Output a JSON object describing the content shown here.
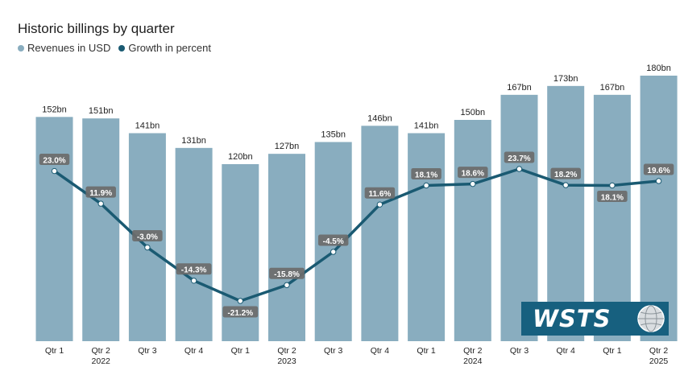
{
  "title": "Historic billings by quarter",
  "legend": [
    {
      "label": "Revenues in USD",
      "color": "#89adbf"
    },
    {
      "label": "Growth in percent",
      "color": "#1a5a72"
    }
  ],
  "logo": {
    "text": "WSTS"
  },
  "colors": {
    "bar": "#89adbf",
    "line": "#1a5a72",
    "label_bg": "#6b6b6b"
  },
  "chart_data": {
    "type": "bar",
    "title": "Historic billings by quarter",
    "categories": [
      "Qtr 1",
      "Qtr 2",
      "Qtr 3",
      "Qtr 4",
      "Qtr 1",
      "Qtr 2",
      "Qtr 3",
      "Qtr 4",
      "Qtr 1",
      "Qtr 2",
      "Qtr 3",
      "Qtr 4",
      "Qtr 1",
      "Qtr 2"
    ],
    "years": [
      {
        "label": "2022",
        "under_index": 1
      },
      {
        "label": "2023",
        "under_index": 5
      },
      {
        "label": "2024",
        "under_index": 9
      },
      {
        "label": "2025",
        "under_index": 13
      }
    ],
    "series": [
      {
        "name": "Revenues in USD",
        "type": "bar",
        "values": [
          152,
          151,
          141,
          131,
          120,
          127,
          135,
          146,
          141,
          150,
          167,
          173,
          167,
          180
        ],
        "labels": [
          "152bn",
          "151bn",
          "141bn",
          "131bn",
          "120bn",
          "127bn",
          "135bn",
          "146bn",
          "141bn",
          "150bn",
          "167bn",
          "173bn",
          "167bn",
          "180bn"
        ]
      },
      {
        "name": "Growth in percent",
        "type": "line",
        "values": [
          23.0,
          11.9,
          -3.0,
          -14.3,
          -21.2,
          -15.8,
          -4.5,
          11.6,
          18.1,
          18.6,
          23.7,
          18.2,
          18.1,
          19.6
        ],
        "labels": [
          "23.0%",
          "11.9%",
          "-3.0%",
          "-14.3%",
          "-21.2%",
          "-15.8%",
          "-4.5%",
          "11.6%",
          "18.1%",
          "18.6%",
          "23.7%",
          "18.2%",
          "18.1%",
          "19.6%"
        ]
      }
    ],
    "bar_ylim": [
      0,
      180
    ],
    "line_ylim": [
      -21.2,
      23.7
    ],
    "grid": false,
    "legend_position": "top-left"
  }
}
